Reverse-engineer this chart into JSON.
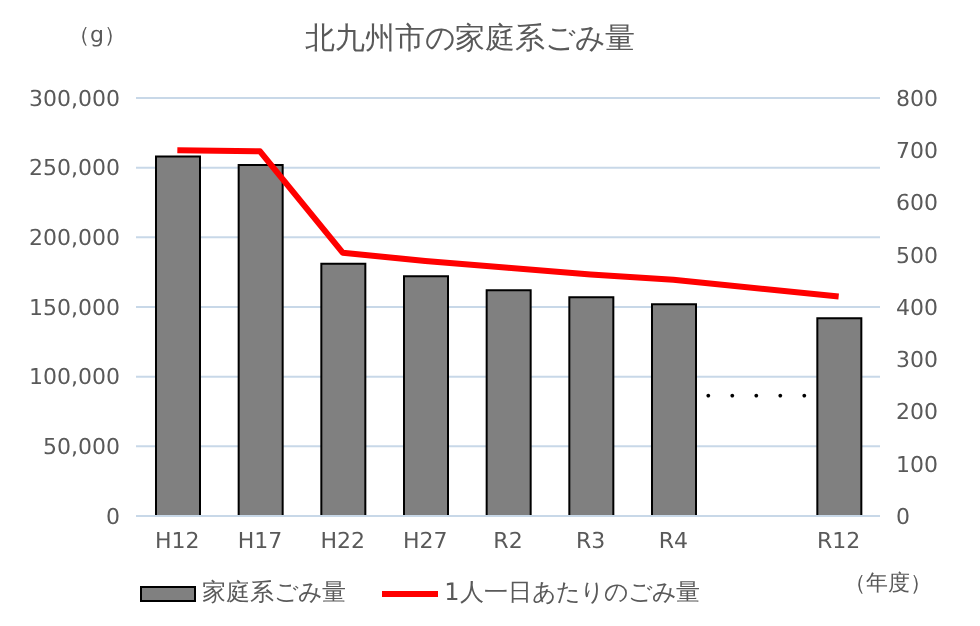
{
  "chart_data": {
    "type": "bar",
    "title": "北九州市の家庭系ごみ量",
    "ylabel": "（g）",
    "xlabel": "（年度）",
    "annotations": [
      "・・・・・"
    ],
    "categories": [
      "H12",
      "H17",
      "H22",
      "H27",
      "R2",
      "R3",
      "R4",
      null,
      "R12"
    ],
    "series": [
      {
        "name": "家庭系ごみ量",
        "color": "#808080",
        "values": [
          258000,
          252000,
          181000,
          172000,
          162000,
          157000,
          152000,
          null,
          142000
        ]
      },
      {
        "name": "1人一日あたりのごみ量",
        "type": "line",
        "axis": "y2",
        "color": "#ff0000",
        "values": [
          700,
          698,
          504,
          488,
          475,
          462,
          452,
          null,
          420
        ]
      }
    ],
    "ylim": [
      0,
      300000
    ],
    "yticks": [
      0,
      {
        "value": 50000,
        "label": "50,000"
      },
      {
        "value": 100000,
        "label": "100,000"
      },
      {
        "value": 150000,
        "label": "150,000"
      },
      {
        "value": 200000,
        "label": "200,000"
      },
      {
        "value": 250000,
        "label": "250,000"
      },
      {
        "value": 300000,
        "label": "300,000"
      }
    ],
    "y2lim": [
      0,
      800
    ],
    "y2ticks": [
      0,
      100,
      200,
      300,
      400,
      500,
      600,
      700,
      800
    ],
    "grid": "y",
    "legend": "bottom",
    "marker": "none",
    "line_style": "solid"
  }
}
